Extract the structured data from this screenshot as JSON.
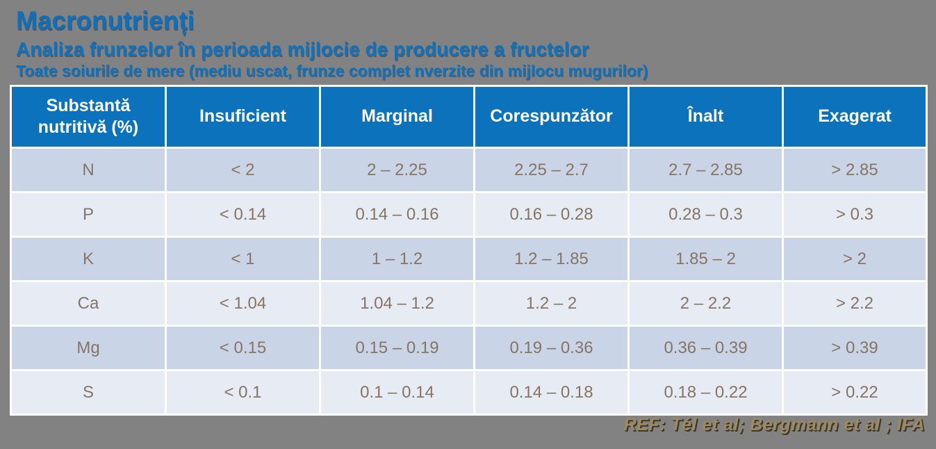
{
  "page": {
    "title": "Macronutrienți",
    "subtitle": "Analiza frunzelor în perioada mijlocie de producere a fructelor",
    "note": "Toate soiurile de mere (mediu uscat, frunze complet nverzite din mijlocu mugurilor)",
    "reference": "REF: Tél et al; Bergmann et al ; IFA"
  },
  "colors": {
    "background_gray": "#828282",
    "header_blue": "#0d72bc",
    "title_blue": "#0e6fbb",
    "row_dark": "#c9d4e7",
    "row_light": "#e7ebf4",
    "cell_text_brown": "#867563",
    "reference_tan": "#9c8a60"
  },
  "table": {
    "headers": [
      "Substantă nutritivă (%)",
      "Insuficient",
      "Marginal",
      "Corespunzător",
      "Înalt",
      "Exagerat"
    ],
    "rows": [
      {
        "cells": [
          "N",
          "< 2",
          "2 – 2.25",
          "2.25 – 2.7",
          "2.7 – 2.85",
          "> 2.85"
        ]
      },
      {
        "cells": [
          "P",
          "< 0.14",
          "0.14 – 0.16",
          "0.16 – 0.28",
          "0.28 – 0.3",
          "> 0.3"
        ]
      },
      {
        "cells": [
          "K",
          "< 1",
          "1 – 1.2",
          "1.2 – 1.85",
          "1.85 – 2",
          "> 2"
        ]
      },
      {
        "cells": [
          "Ca",
          "< 1.04",
          "1.04 – 1.2",
          "1.2 – 2",
          "2 – 2.2",
          "> 2.2"
        ]
      },
      {
        "cells": [
          "Mg",
          "< 0.15",
          "0.15 – 0.19",
          "0.19 – 0.36",
          "0.36 – 0.39",
          "> 0.39"
        ]
      },
      {
        "cells": [
          "S",
          "< 0.1",
          "0.1 – 0.14",
          "0.14 – 0.18",
          "0.18 – 0.22",
          "> 0.22"
        ]
      }
    ]
  }
}
